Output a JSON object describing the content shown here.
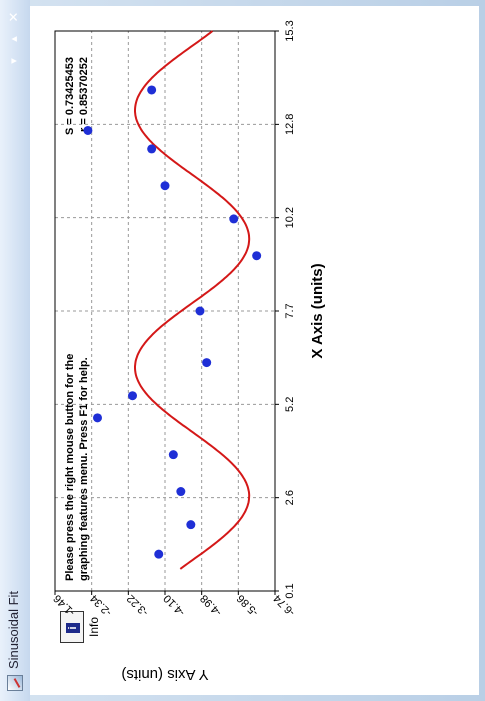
{
  "window": {
    "title": "Sinusoidal Fit"
  },
  "info_button": {
    "label": "Info"
  },
  "help_text": {
    "line1": "Please press the right mouse button for the",
    "line2": "graphing features menu.  Press F1 for help."
  },
  "stats": {
    "s": "S = 0.73425453",
    "r": "r = 0.85370252"
  },
  "colors": {
    "points": "#1f2fd6",
    "curve": "#d41818",
    "grid": "#9a9a9a"
  },
  "chart_data": {
    "type": "scatter",
    "xlabel": "X Axis (units)",
    "ylabel": "Y Axis (units)",
    "xlim": [
      0.1,
      15.3
    ],
    "ylim": [
      -6.74,
      -1.46
    ],
    "x_ticks": [
      "0.1",
      "2.6",
      "5.2",
      "7.7",
      "10.2",
      "12.8",
      "15.3"
    ],
    "y_ticks": [
      "-1.46",
      "-2.34",
      "-3.22",
      "-4.10",
      "-4.98",
      "-5.86",
      "-6.74"
    ],
    "points": [
      {
        "x": 1.1,
        "y": -3.95
      },
      {
        "x": 1.9,
        "y": -4.72
      },
      {
        "x": 2.8,
        "y": -4.48
      },
      {
        "x": 3.8,
        "y": -4.3
      },
      {
        "x": 4.8,
        "y": -2.48
      },
      {
        "x": 5.4,
        "y": -3.32
      },
      {
        "x": 6.3,
        "y": -5.1
      },
      {
        "x": 7.7,
        "y": -4.94
      },
      {
        "x": 9.2,
        "y": -6.3
      },
      {
        "x": 10.2,
        "y": -5.75
      },
      {
        "x": 11.1,
        "y": -4.1
      },
      {
        "x": 12.1,
        "y": -3.78
      },
      {
        "x": 13.7,
        "y": -3.78
      },
      {
        "x": 12.6,
        "y": -2.25
      }
    ],
    "fit": {
      "type": "sinusoid",
      "a": -4.75,
      "b": 1.37,
      "c": 0.9,
      "d": -5.55
    }
  }
}
